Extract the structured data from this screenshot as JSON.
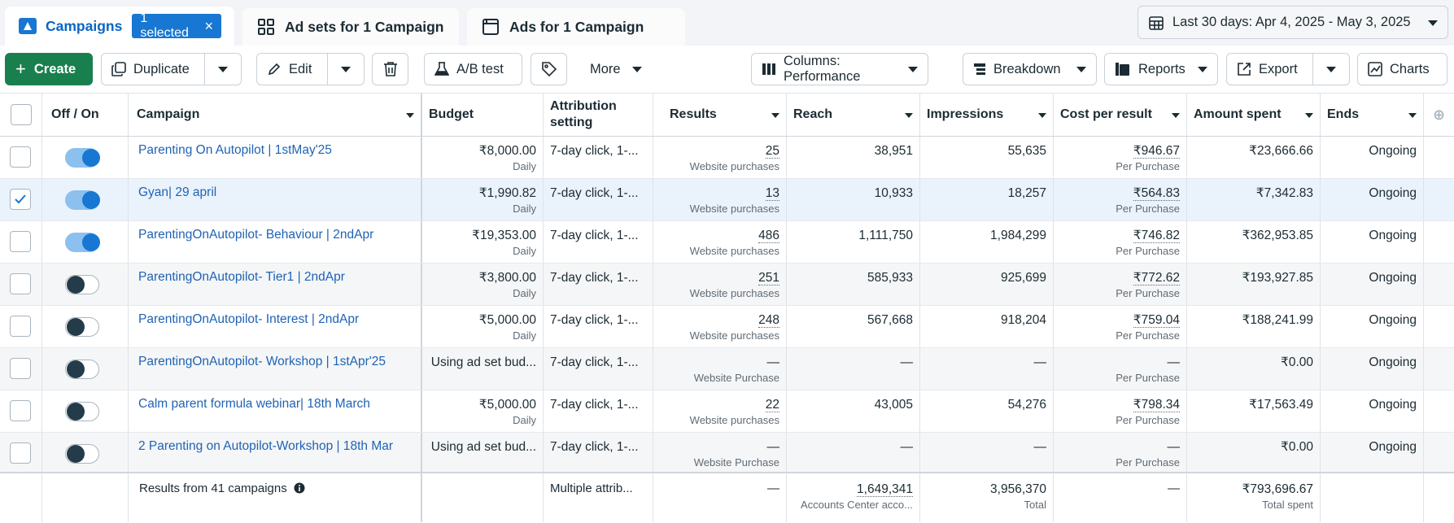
{
  "tabs": {
    "campaigns": {
      "label": "Campaigns",
      "badge": "1 selected",
      "badge_close": "×"
    },
    "adsets": {
      "label": "Ad sets for 1 Campaign"
    },
    "ads": {
      "label": "Ads for 1 Campaign"
    }
  },
  "date_range": {
    "label": "Last 30 days: Apr 4, 2025 - May 3, 2025"
  },
  "toolbar": {
    "create": "Create",
    "create_icon": "+",
    "duplicate": "Duplicate",
    "edit": "Edit",
    "ab_test": "A/B test",
    "more": "More",
    "columns": "Columns: Performance",
    "breakdown": "Breakdown",
    "reports": "Reports",
    "export": "Export",
    "charts": "Charts"
  },
  "columns": {
    "off_on": "Off / On",
    "campaign": "Campaign",
    "budget": "Budget",
    "attribution": "Attribution setting",
    "results": "Results",
    "reach": "Reach",
    "impressions": "Impressions",
    "cost_per_result": "Cost per result",
    "amount_spent": "Amount spent",
    "ends": "Ends"
  },
  "rows": [
    {
      "selected": false,
      "on": true,
      "name": "Parenting On Autopilot | 1stMay'25",
      "budget": "₹8,000.00",
      "budget_sub": "Daily",
      "attribution": "7-day click, 1-...",
      "results": "25",
      "results_sub": "Website purchases",
      "reach": "38,951",
      "impressions": "55,635",
      "cpr": "₹946.67",
      "cpr_sub": "Per Purchase",
      "spent": "₹23,666.66",
      "ends": "Ongoing"
    },
    {
      "selected": true,
      "on": true,
      "name": "Gyan| 29 april",
      "budget": "₹1,990.82",
      "budget_sub": "Daily",
      "attribution": "7-day click, 1-...",
      "results": "13",
      "results_sub": "Website purchases",
      "reach": "10,933",
      "impressions": "18,257",
      "cpr": "₹564.83",
      "cpr_sub": "Per Purchase",
      "spent": "₹7,342.83",
      "ends": "Ongoing"
    },
    {
      "selected": false,
      "on": true,
      "name": "ParentingOnAutopilot- Behaviour | 2ndApr",
      "budget": "₹19,353.00",
      "budget_sub": "Daily",
      "attribution": "7-day click, 1-...",
      "results": "486",
      "results_sub": "Website purchases",
      "reach": "1,111,750",
      "impressions": "1,984,299",
      "cpr": "₹746.82",
      "cpr_sub": "Per Purchase",
      "spent": "₹362,953.85",
      "ends": "Ongoing"
    },
    {
      "selected": false,
      "on": false,
      "name": "ParentingOnAutopilot- Tier1 | 2ndApr",
      "budget": "₹3,800.00",
      "budget_sub": "Daily",
      "attribution": "7-day click, 1-...",
      "results": "251",
      "results_sub": "Website purchases",
      "reach": "585,933",
      "impressions": "925,699",
      "cpr": "₹772.62",
      "cpr_sub": "Per Purchase",
      "spent": "₹193,927.85",
      "ends": "Ongoing"
    },
    {
      "selected": false,
      "on": false,
      "name": "ParentingOnAutopilot- Interest | 2ndApr",
      "budget": "₹5,000.00",
      "budget_sub": "Daily",
      "attribution": "7-day click, 1-...",
      "results": "248",
      "results_sub": "Website purchases",
      "reach": "567,668",
      "impressions": "918,204",
      "cpr": "₹759.04",
      "cpr_sub": "Per Purchase",
      "spent": "₹188,241.99",
      "ends": "Ongoing"
    },
    {
      "selected": false,
      "on": false,
      "name": "ParentingOnAutopilot- Workshop | 1stApr'25",
      "budget": "Using ad set bud...",
      "budget_sub": "",
      "attribution": "7-day click, 1-...",
      "results": "—",
      "results_sub": "Website Purchase",
      "reach": "—",
      "impressions": "—",
      "cpr": "—",
      "cpr_sub": "Per Purchase",
      "spent": "₹0.00",
      "ends": "Ongoing"
    },
    {
      "selected": false,
      "on": false,
      "name": "Calm parent formula webinar| 18th March",
      "budget": "₹5,000.00",
      "budget_sub": "Daily",
      "attribution": "7-day click, 1-...",
      "results": "22",
      "results_sub": "Website purchases",
      "reach": "43,005",
      "impressions": "54,276",
      "cpr": "₹798.34",
      "cpr_sub": "Per Purchase",
      "spent": "₹17,563.49",
      "ends": "Ongoing"
    },
    {
      "selected": false,
      "on": false,
      "name": "2 Parenting on Autopilot-Workshop | 18th Mar",
      "budget": "Using ad set bud...",
      "budget_sub": "",
      "attribution": "7-day click, 1-...",
      "results": "—",
      "results_sub": "Website Purchase",
      "reach": "—",
      "impressions": "—",
      "cpr": "—",
      "cpr_sub": "Per Purchase",
      "spent": "₹0.00",
      "ends": "Ongoing"
    }
  ],
  "totals": {
    "label": "Results from 41 campaigns",
    "attribution": "Multiple attrib...",
    "results": "—",
    "reach": "1,649,341",
    "reach_sub": "Accounts Center acco...",
    "impressions": "3,956,370",
    "impressions_sub": "Total",
    "cpr": "—",
    "spent": "₹793,696.67",
    "spent_sub": "Total spent"
  },
  "icons": {
    "campaigns_tab": "campaign-icon",
    "adsets_tab": "adsets-grid-icon",
    "ads_tab": "ad-icon",
    "calendar": "calendar-icon",
    "duplicate": "duplicate-icon",
    "edit": "pencil-icon",
    "delete": "trash-icon",
    "ab_test": "flask-icon",
    "tag": "tag-icon",
    "columns": "columns-icon",
    "breakdown": "breakdown-icon",
    "reports": "reports-icon",
    "export": "export-icon",
    "charts": "chart-icon",
    "info": "info-icon"
  },
  "colors": {
    "accent": "#1877d2",
    "create_green": "#1a7f4e",
    "link": "#1f63b5"
  }
}
